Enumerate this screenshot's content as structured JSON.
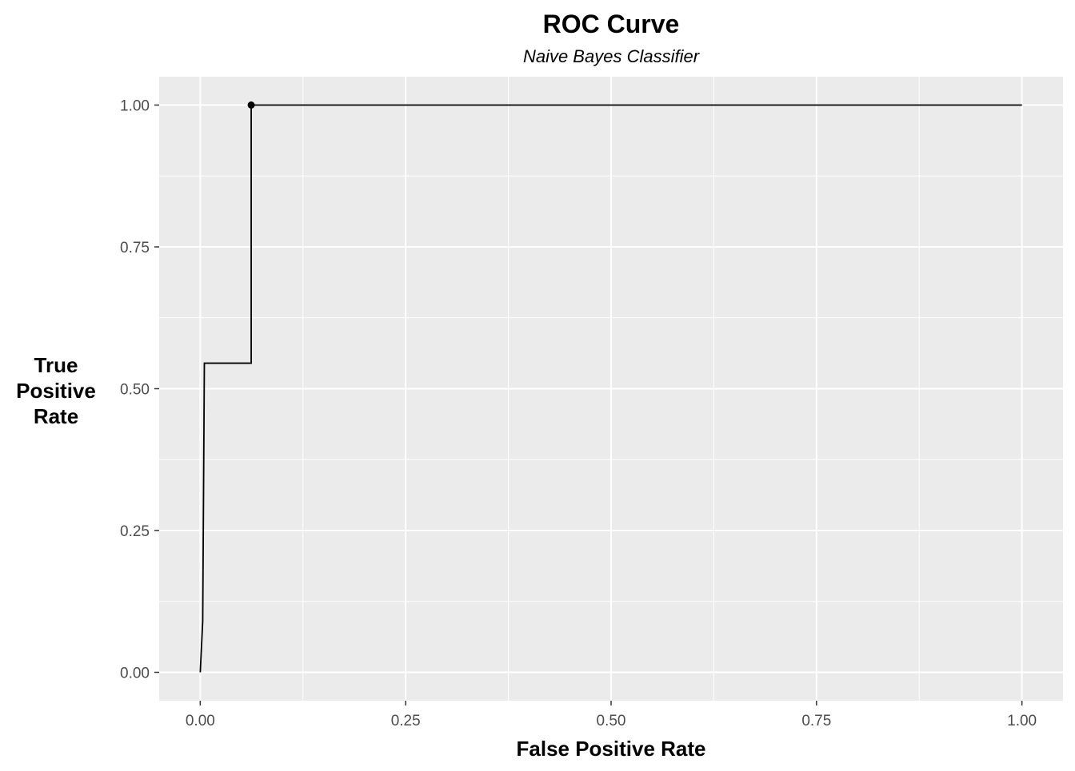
{
  "chart_data": {
    "type": "line",
    "title": "ROC Curve",
    "subtitle": "Naive Bayes Classifier",
    "xlabel": "False Positive Rate",
    "ylabel": [
      "True",
      "Positive",
      "Rate"
    ],
    "xlim": [
      -0.05,
      1.05
    ],
    "ylim": [
      -0.05,
      1.05
    ],
    "x_ticks": [
      0,
      0.25,
      0.5,
      0.75,
      1
    ],
    "x_tick_labels": [
      "0.00",
      "0.25",
      "0.50",
      "0.75",
      "1.00"
    ],
    "y_ticks": [
      0,
      0.25,
      0.5,
      0.75,
      1
    ],
    "y_tick_labels": [
      "0.00",
      "0.25",
      "0.50",
      "0.75",
      "1.00"
    ],
    "grid": true,
    "series": [
      {
        "x": [
          0.0,
          0.003,
          0.005,
          0.062,
          0.062,
          1.0
        ],
        "y": [
          0.0,
          0.09,
          0.545,
          0.545,
          1.0,
          1.0
        ]
      }
    ],
    "highlight_point": {
      "x": 0.062,
      "y": 1.0
    },
    "colors": {
      "panel": "#ebebeb",
      "grid_major": "#ffffff",
      "line": "#000000",
      "tick_text": "#4d4d4d",
      "tick_mark": "#333333"
    }
  }
}
